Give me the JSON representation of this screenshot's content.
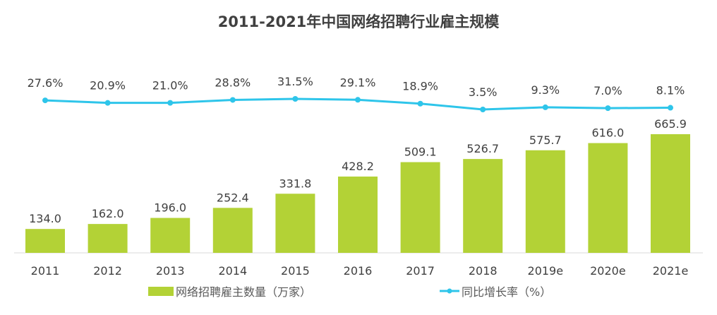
{
  "chart_data": {
    "type": "bar+line",
    "title": "2011-2021年中国网络招聘行业雇主规模",
    "categories": [
      "2011",
      "2012",
      "2013",
      "2014",
      "2015",
      "2016",
      "2017",
      "2018",
      "2019e",
      "2020e",
      "2021e"
    ],
    "series": [
      {
        "name": "网络招聘雇主数量（万家）",
        "type": "bar",
        "color": "#b3d236",
        "values": [
          134.0,
          162.0,
          196.0,
          252.4,
          331.8,
          428.2,
          509.1,
          526.7,
          575.7,
          616.0,
          665.9
        ],
        "labels": [
          "134.0",
          "162.0",
          "196.0",
          "252.4",
          "331.8",
          "428.2",
          "509.1",
          "526.7",
          "575.7",
          "616.0",
          "665.9"
        ]
      },
      {
        "name": "同比增长率（%）",
        "type": "line",
        "color": "#2ec5ea",
        "values": [
          27.6,
          20.9,
          21.0,
          28.8,
          31.5,
          29.1,
          18.9,
          3.5,
          9.3,
          7.0,
          8.1
        ],
        "labels": [
          "27.6%",
          "20.9%",
          "21.0%",
          "28.8%",
          "31.5%",
          "29.1%",
          "18.9%",
          "3.5%",
          "9.3%",
          "7.0%",
          "8.1%"
        ]
      }
    ],
    "legend_position": "bottom",
    "grid": false
  }
}
